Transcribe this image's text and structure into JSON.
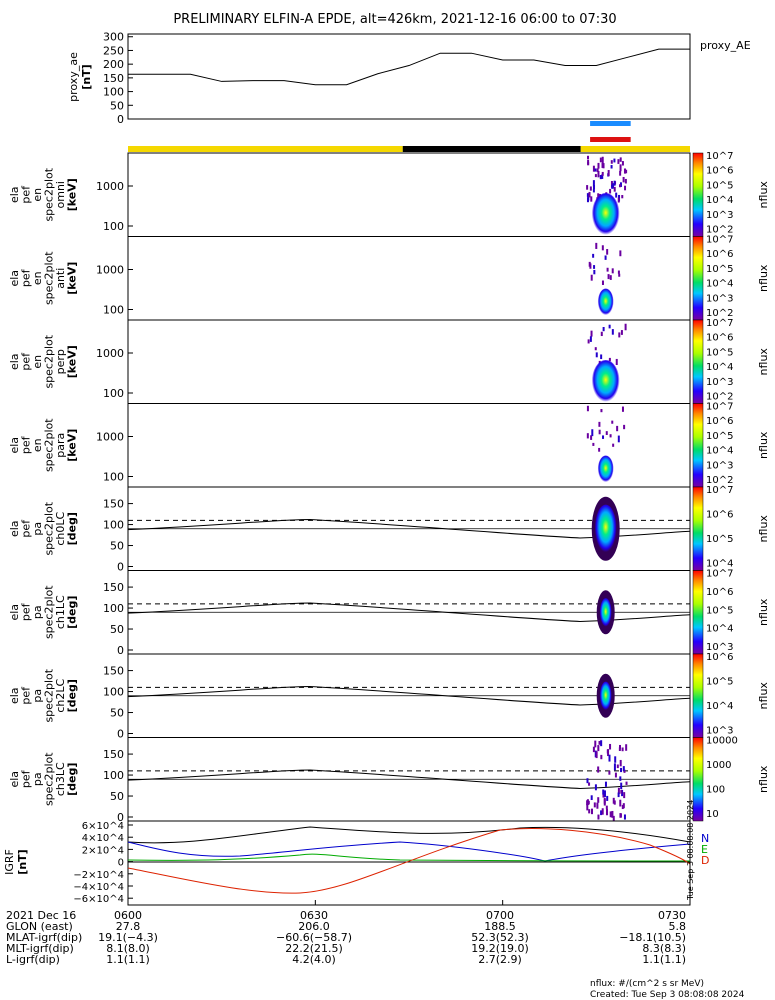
{
  "title": "PRELIMINARY ELFIN-A EPDE, alt=426km, 2021-12-16 06:00 to 07:30",
  "proxy": {
    "ylabel": "proxy_ae",
    "yunit": "[nT]",
    "legend": "proxy_AE",
    "yticks": [
      "0",
      "50",
      "100",
      "150",
      "200",
      "250",
      "300"
    ]
  },
  "spec_en": [
    {
      "labels": [
        "ela",
        "pef",
        "en",
        "spec2plot",
        "omni",
        "[keV]"
      ],
      "cb_ticks": [
        "10^7",
        "10^6",
        "10^5",
        "10^4",
        "10^3",
        "10^2"
      ],
      "cb_label": "nflux"
    },
    {
      "labels": [
        "ela",
        "pef",
        "en",
        "spec2plot",
        "anti",
        "[keV]"
      ],
      "cb_ticks": [
        "10^7",
        "10^6",
        "10^5",
        "10^4",
        "10^3",
        "10^2"
      ],
      "cb_label": "nflux"
    },
    {
      "labels": [
        "ela",
        "pef",
        "en",
        "spec2plot",
        "perp",
        "[keV]"
      ],
      "cb_ticks": [
        "10^7",
        "10^6",
        "10^5",
        "10^4",
        "10^3",
        "10^2"
      ],
      "cb_label": "nflux"
    },
    {
      "labels": [
        "ela",
        "pef",
        "en",
        "spec2plot",
        "para",
        "[keV]"
      ],
      "cb_ticks": [
        "10^7",
        "10^6",
        "10^5",
        "10^4",
        "10^3",
        "10^2"
      ],
      "cb_label": "nflux"
    }
  ],
  "en_yticks": [
    "1000",
    "100"
  ],
  "spec_pa": [
    {
      "labels": [
        "ela",
        "pef",
        "pa",
        "spec2plot",
        "ch0LC",
        "[deg]"
      ],
      "cb_ticks": [
        "10^7",
        "10^6",
        "10^5",
        "10^4"
      ],
      "cb_label": "nflux"
    },
    {
      "labels": [
        "ela",
        "pef",
        "pa",
        "spec2plot",
        "ch1LC",
        "[deg]"
      ],
      "cb_ticks": [
        "10^7",
        "10^6",
        "10^5",
        "10^4",
        "10^3"
      ],
      "cb_label": "nflux"
    },
    {
      "labels": [
        "ela",
        "pef",
        "pa",
        "spec2plot",
        "ch2LC",
        "[deg]"
      ],
      "cb_ticks": [
        "10^6",
        "10^5",
        "10^4",
        "10^3"
      ],
      "cb_label": "nflux"
    },
    {
      "labels": [
        "ela",
        "pef",
        "pa",
        "spec2plot",
        "ch3LC",
        "[deg]"
      ],
      "cb_ticks": [
        "10000",
        "1000",
        "100",
        "10"
      ],
      "cb_label": "nflux"
    }
  ],
  "pa_yticks": [
    "150",
    "100",
    "50",
    "0"
  ],
  "igrf": {
    "ylabel": "IGRF",
    "yunit": "[nT]",
    "yticks": [
      "6×10^4",
      "4×10^4",
      "2×10^4",
      "0",
      "−2×10^4",
      "−4×10^4",
      "−6×10^4"
    ],
    "legend": [
      {
        "name": "N",
        "color": "#0000cc"
      },
      {
        "name": "E",
        "color": "#00aa00"
      },
      {
        "name": "D",
        "color": "#dd2200"
      }
    ],
    "side_text": "Tue Sep  3 08:08:08 2024"
  },
  "xaxis": {
    "rows": [
      {
        "label": "2021 Dec 16",
        "values": [
          "0600",
          "0630",
          "0700",
          "0730"
        ]
      },
      {
        "label": "GLON (east)",
        "values": [
          "27.8",
          "206.0",
          "188.5",
          "5.8"
        ]
      },
      {
        "label": "MLAT-igrf(dip)",
        "values": [
          "19.1(−4.3)",
          "−60.6(−58.7)",
          "52.3(52.3)",
          "−18.1(10.5)"
        ]
      },
      {
        "label": "MLT-igrf(dip)",
        "values": [
          "8.1(8.0)",
          "22.2(21.5)",
          "19.2(19.0)",
          "8.3(8.3)"
        ]
      },
      {
        "label": "L-igrf(dip)",
        "values": [
          "1.1(1.1)",
          "4.2(4.0)",
          "2.7(2.9)",
          "1.1(1.1)"
        ]
      }
    ]
  },
  "footer": {
    "units": "nflux: #/(cm^2 s sr MeV)",
    "created": "Created: Tue Sep  3 08:08:08 2024"
  },
  "colors": {
    "sun": "#f5d800",
    "shadow": "#000000",
    "bar_blue": "#1a8cff",
    "bar_red": "#dd1111",
    "n": "#0000cc",
    "e": "#00aa00",
    "d": "#dd2200"
  },
  "chart_data": {
    "type": "heatmap",
    "x_range": [
      "06:00",
      "07:30"
    ],
    "proxy_ae": {
      "type": "line",
      "x_min": [
        0,
        5,
        10,
        15,
        20,
        25,
        30,
        35,
        40,
        45,
        50,
        55,
        60,
        65,
        70,
        75,
        80,
        85,
        90
      ],
      "y": [
        163,
        163,
        163,
        137,
        140,
        140,
        125,
        125,
        165,
        195,
        240,
        240,
        215,
        215,
        195,
        195,
        225,
        255,
        255
      ],
      "ylim": [
        0,
        310
      ]
    },
    "sunlight_bar": [
      {
        "start_min": 0,
        "end_min": 44,
        "state": "sun"
      },
      {
        "start_min": 44,
        "end_min": 72.5,
        "state": "shadow"
      },
      {
        "start_min": 72.5,
        "end_min": 90,
        "state": "sun"
      }
    ],
    "science_zone_min": [
      74,
      80.5
    ],
    "en_ylim_keV": [
      50,
      7000
    ],
    "pa_ylim_deg": [
      0,
      180
    ],
    "loss_cone_dashed_deg": 110,
    "igrf_ylim": [
      -60000,
      60000
    ]
  }
}
